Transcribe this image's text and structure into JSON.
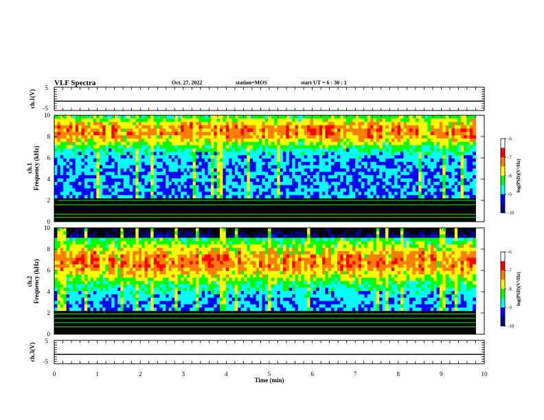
{
  "header": {
    "title": "VLF Spectra",
    "date": "Oct. 27, 2022",
    "station": "station=MOS",
    "start": "start  UT  =   6  : 30 : 1"
  },
  "colors": {
    "black": "#000000",
    "navy": "#00007f",
    "blue": "#0000ff",
    "cyan": "#00ffff",
    "green": "#00ff00",
    "yellow": "#ffff00",
    "orange": "#ff7f00",
    "red": "#ff0000",
    "white": "#ffffff"
  },
  "chart_data": [
    {
      "type": "line",
      "name": "ch1-waveform",
      "ylabel": "ch.1(V)",
      "ylim": [
        -5,
        5
      ],
      "yticks": [
        "5",
        "-5"
      ],
      "xlim": [
        0,
        10
      ],
      "baseline_value": -1
    },
    {
      "type": "heatmap",
      "name": "ch1-spectrogram",
      "ylabel": "Frequency (kHz)",
      "channel_label": "ch.1",
      "xlim": [
        0,
        10
      ],
      "ylim": [
        0,
        10
      ],
      "yticks": [
        "0",
        "2",
        "4",
        "6",
        "8",
        "10"
      ],
      "data_end_min": 9.8,
      "band_center_khz": 8.5,
      "band_width_khz": 1.5,
      "lines_khz": [
        0.4,
        0.7,
        1.6,
        2.0
      ],
      "colorbar": {
        "label": "log(PSD)(V²/Hz)",
        "ticks": [
          "-6",
          "-7",
          "-8",
          "-9",
          "-10"
        ],
        "range": [
          -10,
          -6
        ]
      }
    },
    {
      "type": "heatmap",
      "name": "ch2-spectrogram",
      "ylabel": "Frequency (kHz)",
      "channel_label": "ch.2",
      "xlim": [
        0,
        10
      ],
      "ylim": [
        0,
        10
      ],
      "yticks": [
        "0",
        "2",
        "4",
        "6",
        "8",
        "10"
      ],
      "data_end_min": 9.8,
      "band_center_khz": 6.8,
      "band_width_khz": 2.0,
      "lines_khz": [
        0.7,
        1.1,
        1.5,
        1.9
      ],
      "colorbar": {
        "label": "log(PSD)(V²/Hz)",
        "ticks": [
          "-6",
          "-7",
          "-8",
          "-9",
          "-10"
        ],
        "range": [
          -10,
          -6
        ]
      }
    },
    {
      "type": "line",
      "name": "ch3-waveform",
      "ylabel": "ch.3(V)",
      "ylim": [
        -5,
        5
      ],
      "yticks": [
        "5",
        "-5"
      ],
      "xlim": [
        0,
        10
      ],
      "baseline_value": -1
    }
  ],
  "xaxis": {
    "label": "Time  (min)",
    "ticks": [
      "0",
      "1",
      "2",
      "3",
      "4",
      "5",
      "6",
      "7",
      "8",
      "9",
      "10"
    ]
  }
}
